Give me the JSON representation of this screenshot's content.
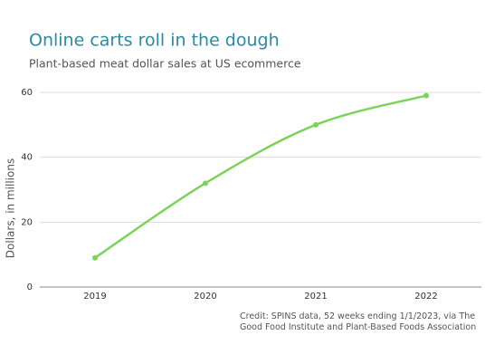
{
  "chart_data": {
    "type": "line",
    "title": "Online carts roll in the dough",
    "subtitle": "Plant-based meat dollar sales at US ecommerce",
    "y_label": "Dollars, in millions",
    "credit": "Credit: SPINS data, 52 weeks ending 1/1/2023, via The Good Food Institute and Plant-Based Foods Association",
    "categories": [
      "2019",
      "2020",
      "2021",
      "2022"
    ],
    "series": [
      {
        "name": "Plant-based meat dollar sales",
        "color": "#7dd35a",
        "values": [
          9,
          32,
          50,
          59
        ]
      }
    ],
    "ylim": [
      0,
      60
    ],
    "yticks": [
      0,
      20,
      40,
      60
    ],
    "grid": true
  }
}
